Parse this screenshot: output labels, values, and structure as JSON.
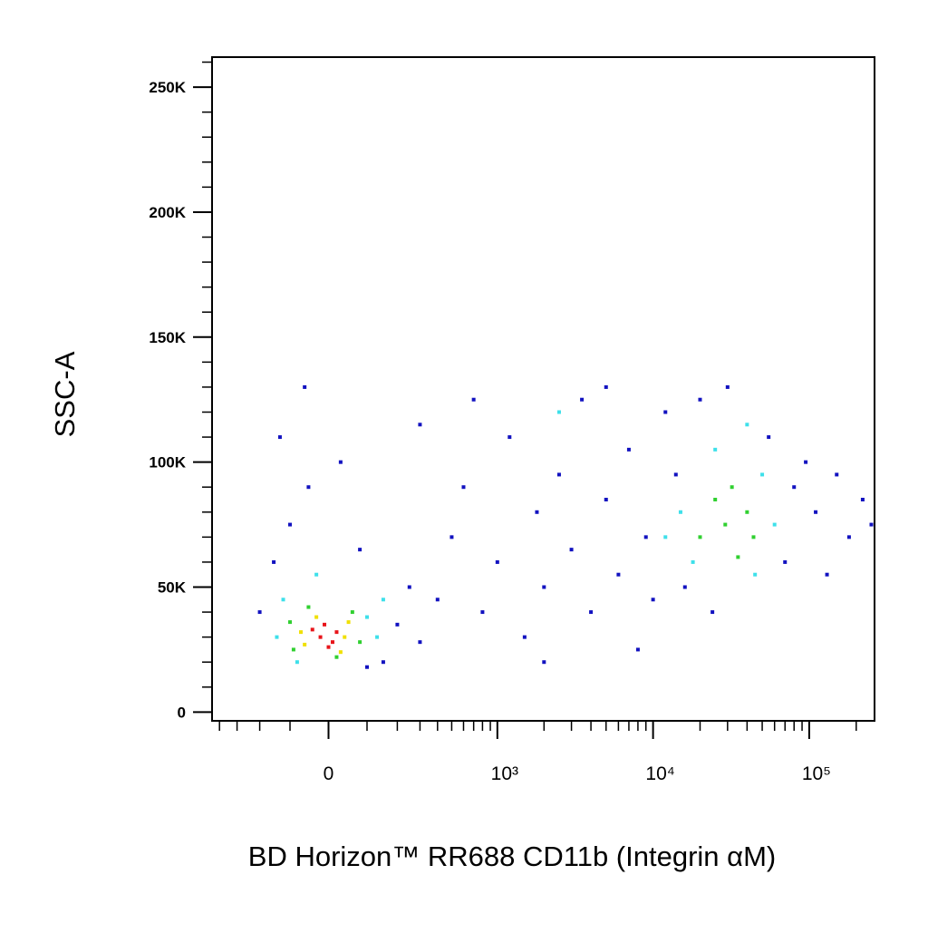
{
  "chart_data": {
    "type": "scatter",
    "x_label": "BD Horizon™ RR688 CD11b (Integrin αM)",
    "y_label": "SSC-A",
    "xscale": "biexponential",
    "xlim": [
      -450,
      262000
    ],
    "ylim": [
      -3500,
      262000
    ],
    "xticks": [
      0,
      {
        "value": 1000,
        "label": "10³"
      },
      {
        "value": 10000,
        "label": "10⁴"
      },
      {
        "value": 100000,
        "label": "10⁵"
      }
    ],
    "yticks": [
      0,
      {
        "value": 50000,
        "label": "50K"
      },
      {
        "value": 100000,
        "label": "100K"
      },
      {
        "value": 150000,
        "label": "150K"
      },
      {
        "value": 200000,
        "label": "200K"
      },
      {
        "value": 250000,
        "label": "250K"
      }
    ],
    "xminorticks": [
      -400,
      -300,
      -200,
      -100,
      100,
      200,
      300,
      400,
      500,
      600,
      700,
      800,
      900,
      2000,
      3000,
      4000,
      5000,
      6000,
      7000,
      8000,
      9000,
      20000,
      30000,
      40000,
      50000,
      60000,
      70000,
      80000,
      90000,
      200000
    ],
    "yminorticks": [
      10000,
      20000,
      30000,
      40000,
      60000,
      70000,
      80000,
      90000,
      110000,
      120000,
      130000,
      140000,
      160000,
      170000,
      180000,
      190000,
      210000,
      220000,
      230000,
      240000,
      260000
    ],
    "series": [
      {
        "color": "#1212c0",
        "x": [
          -150,
          -100,
          -50,
          -130,
          -60,
          30,
          80,
          150,
          200,
          250,
          300,
          400,
          500,
          600,
          800,
          1000,
          1200,
          1500,
          1800,
          2000,
          2500,
          3000,
          3500,
          4000,
          5000,
          6000,
          7000,
          8000,
          9000,
          10000,
          12000,
          14000,
          16000,
          20000,
          24000,
          30000,
          55000,
          70000,
          80000,
          95000,
          110000,
          130000,
          150000,
          180000,
          220000,
          250000,
          300,
          700,
          5000,
          -200,
          100,
          2000
        ],
        "y": [
          60000,
          75000,
          90000,
          110000,
          130000,
          100000,
          65000,
          20000,
          35000,
          50000,
          28000,
          45000,
          70000,
          90000,
          40000,
          60000,
          110000,
          30000,
          80000,
          50000,
          95000,
          65000,
          125000,
          40000,
          85000,
          55000,
          105000,
          25000,
          70000,
          45000,
          120000,
          95000,
          50000,
          125000,
          40000,
          130000,
          110000,
          60000,
          90000,
          100000,
          80000,
          55000,
          95000,
          70000,
          85000,
          75000,
          115000,
          125000,
          130000,
          40000,
          18000,
          20000
        ]
      },
      {
        "color": "#3ee0ea",
        "x": [
          -120,
          100,
          -80,
          130,
          -30,
          150,
          -140,
          15000,
          50000,
          18000,
          60000,
          25000,
          45000,
          12000,
          40000,
          2500
        ],
        "y": [
          45000,
          38000,
          20000,
          30000,
          55000,
          45000,
          30000,
          80000,
          95000,
          60000,
          75000,
          105000,
          55000,
          70000,
          115000,
          120000
        ]
      },
      {
        "color": "#30d030",
        "x": [
          -90,
          60,
          -100,
          80,
          -50,
          20,
          29000,
          44000,
          25000,
          35000,
          40000,
          20000,
          32000
        ],
        "y": [
          25000,
          40000,
          36000,
          28000,
          42000,
          22000,
          75000,
          70000,
          85000,
          62000,
          80000,
          70000,
          90000
        ]
      },
      {
        "color": "#f0e000",
        "x": [
          -60,
          40,
          -30,
          30,
          -70,
          50
        ],
        "y": [
          27000,
          30000,
          38000,
          24000,
          32000,
          36000
        ]
      },
      {
        "color": "#e8141a",
        "x": [
          -20,
          10,
          -40,
          20,
          0,
          -10
        ],
        "y": [
          30000,
          28000,
          33000,
          32000,
          26000,
          35000
        ]
      }
    ]
  }
}
